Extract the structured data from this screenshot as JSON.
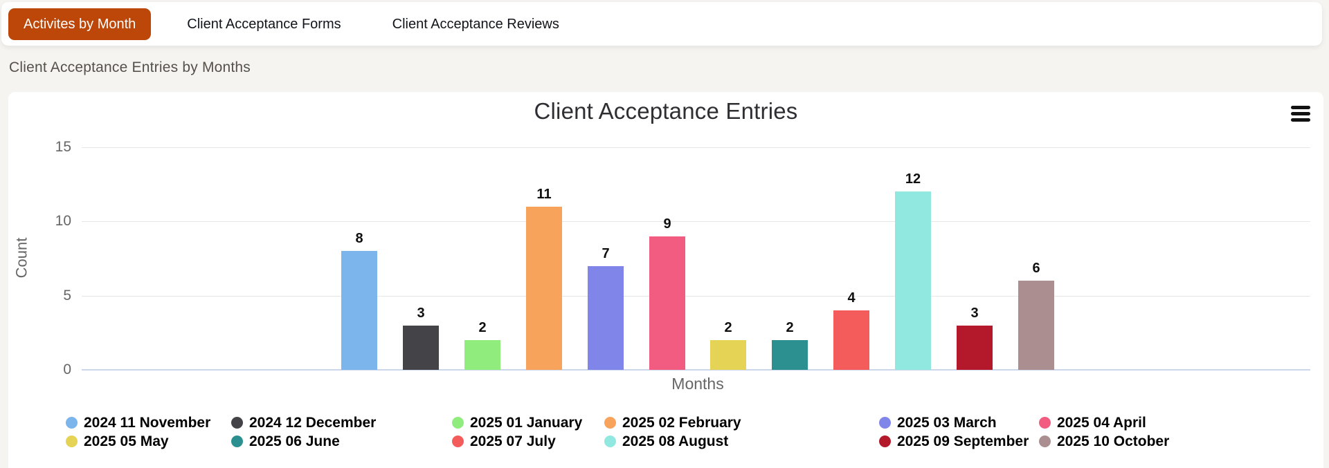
{
  "tabs": {
    "items": [
      {
        "label": "Activites by Month",
        "active": true
      },
      {
        "label": "Client Acceptance Forms",
        "active": false
      },
      {
        "label": "Client Acceptance Reviews",
        "active": false
      }
    ],
    "active_bg_color": "#bc4708"
  },
  "section": {
    "title": "Client Acceptance Entries by Months"
  },
  "icons": {
    "menu": "hamburger-icon"
  },
  "chart_data": {
    "type": "bar",
    "title": "Client Acceptance Entries",
    "xlabel": "Months",
    "ylabel": "Count",
    "ylim": [
      0,
      15
    ],
    "yticks": [
      0,
      5,
      10,
      15
    ],
    "grid": true,
    "legend_position": "bottom",
    "data_labels": true,
    "series": [
      {
        "name": "2024 11 November",
        "value": 8,
        "color": "#7cb5ec"
      },
      {
        "name": "2024 12 December",
        "value": 3,
        "color": "#434348"
      },
      {
        "name": "2025 01 January",
        "value": 2,
        "color": "#90ed7d"
      },
      {
        "name": "2025 02 February",
        "value": 11,
        "color": "#f7a35c"
      },
      {
        "name": "2025 03 March",
        "value": 7,
        "color": "#8085e9"
      },
      {
        "name": "2025 04 April",
        "value": 9,
        "color": "#f15c80"
      },
      {
        "name": "2025 05 May",
        "value": 2,
        "color": "#e4d354"
      },
      {
        "name": "2025 06 June",
        "value": 2,
        "color": "#2b908f"
      },
      {
        "name": "2025 07 July",
        "value": 4,
        "color": "#f45b5b"
      },
      {
        "name": "2025 08 August",
        "value": 12,
        "color": "#91e8e1"
      },
      {
        "name": "2025 09 September",
        "value": 3,
        "color": "#b3192b"
      },
      {
        "name": "2025 10 October",
        "value": 6,
        "color": "#ab8e8f"
      }
    ],
    "colors": {
      "grid_line": "#e6e6e6",
      "axis_line": "#ccd6eb",
      "axis_label": "#666666",
      "title_text": "#2e2e33",
      "data_label": "#0f0f0f",
      "legend_text": "#000000"
    }
  }
}
